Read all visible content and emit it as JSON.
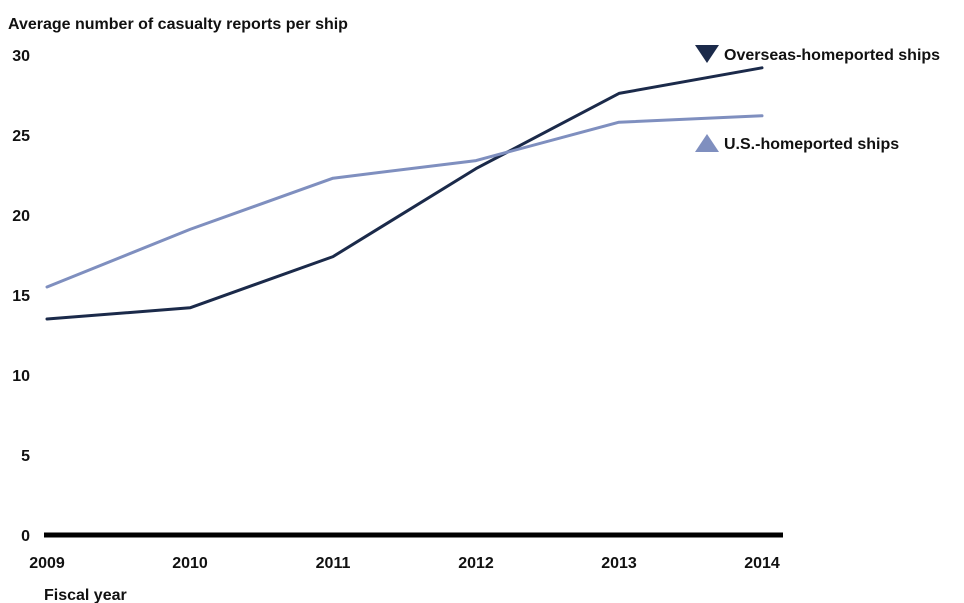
{
  "chart_data": {
    "type": "line",
    "title": "Average number of casualty reports per ship",
    "xlabel": "Fiscal year",
    "ylabel": "",
    "categories": [
      "2009",
      "2010",
      "2011",
      "2012",
      "2013",
      "2014"
    ],
    "ylim": [
      0,
      30
    ],
    "yticks": [
      0,
      5,
      10,
      15,
      20,
      25,
      30
    ],
    "grid": false,
    "legend_placement": "right",
    "series": [
      {
        "name": "Overseas-homeported ships",
        "values": [
          13.5,
          14.2,
          17.4,
          22.9,
          27.6,
          29.2
        ],
        "color": "#1b2a4a",
        "marker": "triangle-down"
      },
      {
        "name": "U.S.-homeported ships",
        "values": [
          15.5,
          19.1,
          22.3,
          23.4,
          25.8,
          26.2
        ],
        "color": "#7f8fbf",
        "marker": "triangle-up"
      }
    ],
    "axis_color": "#000000"
  }
}
